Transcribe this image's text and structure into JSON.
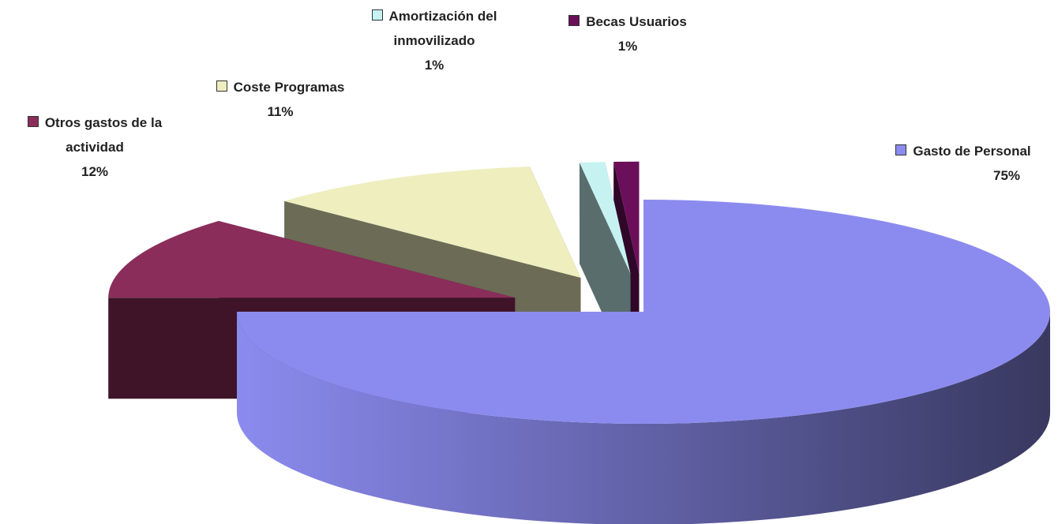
{
  "chart_data": {
    "type": "pie",
    "categories": [
      "Gasto de Personal",
      "Otros gastos de la actividad",
      "Coste Programas",
      "Amortización del inmovilizado",
      "Becas Usuarios"
    ],
    "values": [
      75,
      12,
      11,
      1,
      1
    ],
    "value_labels": [
      "75%",
      "12%",
      "11%",
      "1%",
      "1%"
    ],
    "colors": [
      "#8b8bef",
      "#8b2d5a",
      "#eeeebf",
      "#c6f2f2",
      "#6b0f5a"
    ],
    "legend": "label"
  }
}
